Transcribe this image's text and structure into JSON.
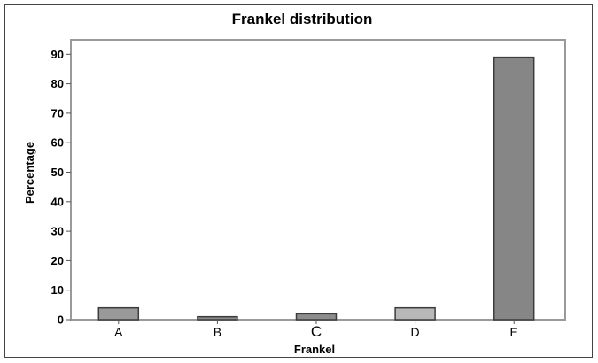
{
  "chart_data": {
    "type": "bar",
    "title": "Frankel distribution",
    "xlabel": "Frankel",
    "ylabel": "Percentage",
    "categories": [
      "A",
      "B",
      "C",
      "D",
      "E"
    ],
    "values": [
      4,
      1,
      2,
      4,
      89
    ],
    "bar_colors": [
      "#999999",
      "#8c8c8c",
      "#8c8c8c",
      "#b8b8b8",
      "#868686"
    ],
    "ylim": [
      0,
      95
    ],
    "yticks": [
      0,
      10,
      20,
      30,
      40,
      50,
      60,
      70,
      80,
      90
    ],
    "grid": false,
    "legend": "none"
  }
}
